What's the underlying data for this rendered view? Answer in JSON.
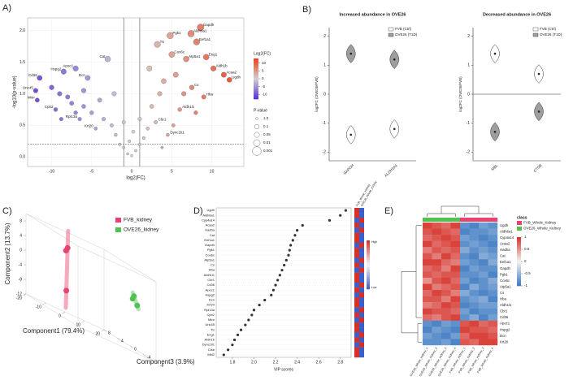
{
  "chart_data": [
    {
      "panel": "A)",
      "type": "scatter",
      "x_label": "log2(FC)",
      "y_label": "-log10(p-value)",
      "xlim": [
        -13,
        14
      ],
      "ylim": [
        -0.15,
        2.2
      ],
      "xticks": [
        -10,
        -5,
        0,
        5,
        10
      ],
      "yticks": [
        {
          "value": 0,
          "label": "0.0"
        },
        {
          "value": 0.5,
          "label": "0.5"
        },
        {
          "value": 1,
          "label": "1.0"
        },
        {
          "value": 1.5,
          "label": "1.5"
        },
        {
          "value": 2,
          "label": "2.0"
        }
      ],
      "grid": true,
      "threshold_x": [
        -1,
        1
      ],
      "threshold_y": 0.2,
      "x": [
        8.6,
        7.4,
        8.1,
        4.8,
        3.2,
        5.0,
        9.3,
        6.8,
        10.2,
        11.5,
        12.2,
        7.5,
        9.0,
        6.0,
        3.0,
        4.5,
        -11.5,
        -12.0,
        -11.8,
        -8.5,
        -7.0,
        -9.5,
        -6.5,
        -4.5,
        -3.0,
        -5.5,
        -10,
        -9,
        -8,
        -7.5,
        -7,
        -6,
        -5,
        -4,
        -3.5,
        -2.5,
        -2,
        -1.5,
        -1,
        -0.5,
        0,
        0.5,
        1,
        1.5,
        2,
        2.5,
        3.5,
        4,
        5.5,
        6.5,
        8,
        1,
        -1,
        0.2,
        -0.3,
        2.2,
        -2.2,
        -6,
        -8.8,
        3.8,
        5.2
      ],
      "y": [
        2.05,
        1.95,
        1.82,
        1.92,
        1.78,
        1.62,
        1.58,
        1.55,
        1.4,
        1.3,
        1.22,
        1.1,
        0.95,
        0.75,
        0.55,
        0.35,
        1.25,
        1.05,
        0.9,
        1.35,
        1.4,
        0.75,
        0.6,
        0.45,
        1.55,
        1.25,
        1.1,
        1.0,
        0.95,
        0.85,
        0.7,
        0.8,
        0.7,
        0.9,
        0.6,
        0.5,
        0.35,
        0.2,
        0.15,
        0.05,
        0.02,
        0.1,
        0.2,
        0.3,
        0.45,
        0.8,
        1.0,
        1.2,
        1.3,
        1.0,
        0.7,
        0.6,
        0.55,
        0.4,
        0.25,
        1.4,
        1.0,
        1.05,
        0.6,
        0.15,
        0.5
      ],
      "labels": [
        "Gapdh",
        "Aldh6a1",
        "Eef1a1",
        "Pgk1",
        "Ttr",
        "Cox6c",
        "Eng1",
        "Atp5a1",
        "Aldh1b",
        "Acaa2",
        "Ugdh",
        "Cs",
        "Hba",
        "Aldh1l1",
        "Cbr1",
        "Dync1li1",
        "Cd36",
        "Unc45",
        "Mtnr",
        "Hspg2",
        "Apoc1",
        "Cpb2",
        "Rpl13a",
        "Krt20",
        "Cat",
        "Dcn",
        null,
        null,
        null,
        null,
        null,
        null,
        null,
        null,
        null,
        null,
        null,
        null,
        null,
        null,
        null,
        null,
        null,
        null,
        null,
        null,
        null,
        null,
        null,
        null,
        null,
        null,
        null,
        null,
        null,
        null,
        null,
        null,
        null,
        null,
        null
      ],
      "color_legend": {
        "title": "Log2(FC)",
        "clim": [
          -13,
          13
        ],
        "ticks": [
          10,
          5,
          0,
          -5,
          -10
        ],
        "colors": [
          "#5b2fd6",
          "#d0d0d0",
          "#e8401c"
        ]
      },
      "size_legend": {
        "title": "P-value",
        "values": [
          {
            "value": 1,
            "label": "1.0"
          },
          0.1,
          0.05,
          0.01,
          0.001
        ]
      }
    },
    {
      "panel": "B)",
      "type": "violin",
      "title": "Increased abundance in OVE26",
      "y_label": "log2FC (OVE26/FVB)",
      "categories": [
        "GAPDH",
        "ALDH1A1"
      ],
      "ylim": [
        -2.3,
        2.3
      ],
      "yticks": [
        -2,
        -1,
        0,
        1,
        2
      ],
      "zero_line": false,
      "series": [
        {
          "name": "FVB (Ctrl)",
          "color": "#ffffff",
          "values": [
            -1.4,
            -1.2
          ]
        },
        {
          "name": "OVE26 (T1D)",
          "color": "#9e9e9e",
          "values": [
            1.4,
            1.2
          ]
        }
      ]
    },
    {
      "type": "violin",
      "title": "Decreased abundance in OVE26",
      "y_label": "log2FC (OVE26/FVB)",
      "categories": [
        "MBL",
        "CTSB"
      ],
      "ylim": [
        -2.3,
        2.3
      ],
      "yticks": [
        -2,
        -1,
        0,
        1,
        2
      ],
      "zero_line": true,
      "series": [
        {
          "name": "FVB (Ctrl)",
          "color": "#ffffff",
          "values": [
            1.4,
            0.7
          ]
        },
        {
          "name": "OVE26 (T1D)",
          "color": "#9e9e9e",
          "values": [
            -1.3,
            -0.6
          ]
        }
      ]
    },
    {
      "panel": "C)",
      "type": "scatter3d",
      "x_label": "Component1 (79.4%)",
      "y_label": "Component2 (13.7%)",
      "z_label": "Component3 (3.9%)",
      "xlim": [
        -20,
        20
      ],
      "ylim": [
        -12,
        10
      ],
      "zlim": [
        -8,
        8
      ],
      "xticks": [
        -20,
        -10,
        0,
        10,
        20
      ],
      "yticks": [
        -12,
        -8,
        -4,
        0,
        4,
        8
      ],
      "zticks": [
        -8,
        -4,
        0,
        4,
        8
      ],
      "series": [
        {
          "name": "FVB_kidney",
          "color": "#e8436e",
          "x": [
            -12,
            -12,
            -11
          ],
          "y": [
            7,
            6,
            -5
          ],
          "z": [
            0,
            0.5,
            1
          ]
        },
        {
          "name": "OVE26_kidney",
          "color": "#52c152",
          "x": [
            12,
            13,
            12
          ],
          "y": [
            3,
            2,
            1
          ],
          "z": [
            -6,
            -5,
            -7
          ]
        }
      ]
    },
    {
      "panel": "D)",
      "type": "dot",
      "x_label": "VIP scores",
      "xlim": [
        1.65,
        2.9
      ],
      "xticks": [
        1.8,
        {
          "value": 2,
          "label": "2.0"
        },
        2.2,
        2.4,
        2.6,
        2.8
      ],
      "categories": [
        "Ugdh",
        "Aldh6a1",
        "Cyp4a14",
        "Acaa2",
        "Hadha",
        "Cat",
        "Eef1a1",
        "Gapdh",
        "Pgk1",
        "Cox6c",
        "Atp5a1",
        "Cs",
        "Hba",
        "Aldh1l1",
        "Cbr1",
        "Cd36",
        "Apoc1",
        "Hspg2",
        "Dcn",
        "Krt20",
        "Rpl13a",
        "Cpb2",
        "Mtnr",
        "Unc45",
        "Ttr",
        "Eng1",
        "Aldh1b",
        "Dync1li1",
        "Ctsb",
        "Mbl2"
      ],
      "values": [
        2.85,
        2.8,
        2.7,
        2.45,
        2.4,
        2.38,
        2.36,
        2.34,
        2.33,
        2.32,
        2.3,
        2.28,
        2.26,
        2.24,
        2.22,
        2.2,
        2.18,
        2.16,
        2.1,
        2.05,
        2.0,
        1.98,
        1.95,
        1.92,
        1.88,
        1.85,
        1.82,
        1.8,
        1.76,
        1.72
      ],
      "heat_groups": [
        "FVB_Whole_Kidney",
        "OVE26_Whole_Kidney"
      ],
      "heat_values": [
        [
          1,
          1,
          -1,
          1,
          -1,
          1,
          1,
          -1,
          1,
          1,
          -1,
          1,
          -1,
          1,
          1,
          -1,
          1,
          -1,
          1,
          1,
          -1,
          1,
          -1,
          1,
          1,
          -1,
          1,
          -1,
          1,
          1
        ],
        [
          -1,
          -1,
          1,
          -1,
          1,
          -1,
          -1,
          1,
          -1,
          -1,
          1,
          -1,
          1,
          -1,
          -1,
          1,
          -1,
          1,
          -1,
          -1,
          1,
          -1,
          1,
          -1,
          -1,
          1,
          -1,
          1,
          -1,
          -1
        ]
      ],
      "heat_colors": [
        "#3a5fc8",
        "#f5f5f5",
        "#d62f27"
      ],
      "heat_legend": [
        "High",
        "Low"
      ]
    },
    {
      "panel": "E)",
      "type": "heatmap",
      "columns": [
        "OVE26_Whole_Kidney_1",
        "OVE26_Whole_Kidney_2",
        "OVE26_Whole_Kidney_3",
        "OVE26_Whole_Kidney_4",
        "FVB_Whole_Kidney_1",
        "FVB_Whole_Kidney_2",
        "FVB_Whole_Kidney_3",
        "FVB_Whole_Kidney_4"
      ],
      "rows": [
        "Ugdh",
        "Aldh6a1",
        "Cyp4a14",
        "Acaa2",
        "Hadha",
        "Cat",
        "Eef1a1",
        "Gapdh",
        "Pgk1",
        "Cox6c",
        "Atp5a1",
        "Cs",
        "Hba",
        "Aldh1l1",
        "Cbr1",
        "Cd36",
        "Apoc1",
        "Hspg2",
        "Dcn",
        "Krt20"
      ],
      "values": [
        [
          0.9,
          0.8,
          0.7,
          0.9,
          -0.8,
          -0.9,
          -0.7,
          -0.8
        ],
        [
          0.8,
          0.9,
          0.8,
          0.7,
          -0.9,
          -0.8,
          -0.8,
          -0.7
        ],
        [
          0.7,
          0.8,
          0.9,
          0.8,
          -0.7,
          -0.8,
          -0.9,
          -0.8
        ],
        [
          0.9,
          0.7,
          0.8,
          0.9,
          -0.8,
          -0.7,
          -0.8,
          -0.9
        ],
        [
          0.6,
          0.8,
          0.7,
          0.8,
          -0.6,
          -0.8,
          -0.7,
          -0.8
        ],
        [
          0.8,
          0.6,
          0.9,
          0.7,
          -0.8,
          -0.9,
          -0.6,
          -0.7
        ],
        [
          0.9,
          0.9,
          0.7,
          0.6,
          -0.7,
          -0.8,
          -0.9,
          -0.6
        ],
        [
          0.7,
          0.8,
          0.6,
          0.9,
          -0.9,
          -0.7,
          -0.8,
          -0.8
        ],
        [
          0.8,
          0.7,
          0.8,
          0.8,
          -0.8,
          -0.8,
          -0.7,
          -0.9
        ],
        [
          0.5,
          0.8,
          0.9,
          0.7,
          -0.7,
          -0.9,
          -0.8,
          -0.6
        ],
        [
          0.9,
          0.6,
          0.7,
          0.8,
          -0.9,
          -0.6,
          -0.8,
          -0.7
        ],
        [
          0.7,
          0.9,
          0.8,
          0.6,
          -0.6,
          -0.8,
          -0.9,
          -0.8
        ],
        [
          0.8,
          0.8,
          0.6,
          0.9,
          -0.8,
          -0.7,
          -0.6,
          -0.9
        ],
        [
          0.6,
          0.7,
          0.9,
          0.8,
          -0.9,
          -0.8,
          -0.7,
          -0.7
        ],
        [
          0.9,
          0.8,
          0.8,
          0.7,
          -0.7,
          -0.9,
          -0.8,
          -0.8
        ],
        [
          0.7,
          0.6,
          0.8,
          0.9,
          -0.8,
          -0.6,
          -0.9,
          -0.7
        ],
        [
          -0.8,
          -0.9,
          -0.7,
          -0.8,
          0.8,
          0.9,
          0.7,
          0.8
        ],
        [
          -0.9,
          -0.7,
          -0.8,
          -0.9,
          0.9,
          0.8,
          0.8,
          0.7
        ],
        [
          -0.7,
          -0.8,
          -0.9,
          -0.7,
          0.7,
          0.9,
          0.9,
          0.8
        ],
        [
          -0.8,
          -0.8,
          -0.7,
          -0.9,
          0.8,
          0.7,
          0.9,
          0.9
        ]
      ],
      "column_class": [
        1,
        1,
        1,
        1,
        0,
        0,
        0,
        0
      ],
      "class_title": "class",
      "classes": [
        {
          "name": "FVB_Whole_Kidney",
          "color": "#e8436e"
        },
        {
          "name": "OVE26_Whole_Kidney",
          "color": "#52c152"
        }
      ],
      "clim": [
        -1,
        1
      ],
      "cticks": [
        1,
        0.5,
        0,
        -0.5,
        -1
      ],
      "colors": [
        "#3a78c2",
        "#f5f5f5",
        "#d62f27"
      ]
    }
  ]
}
